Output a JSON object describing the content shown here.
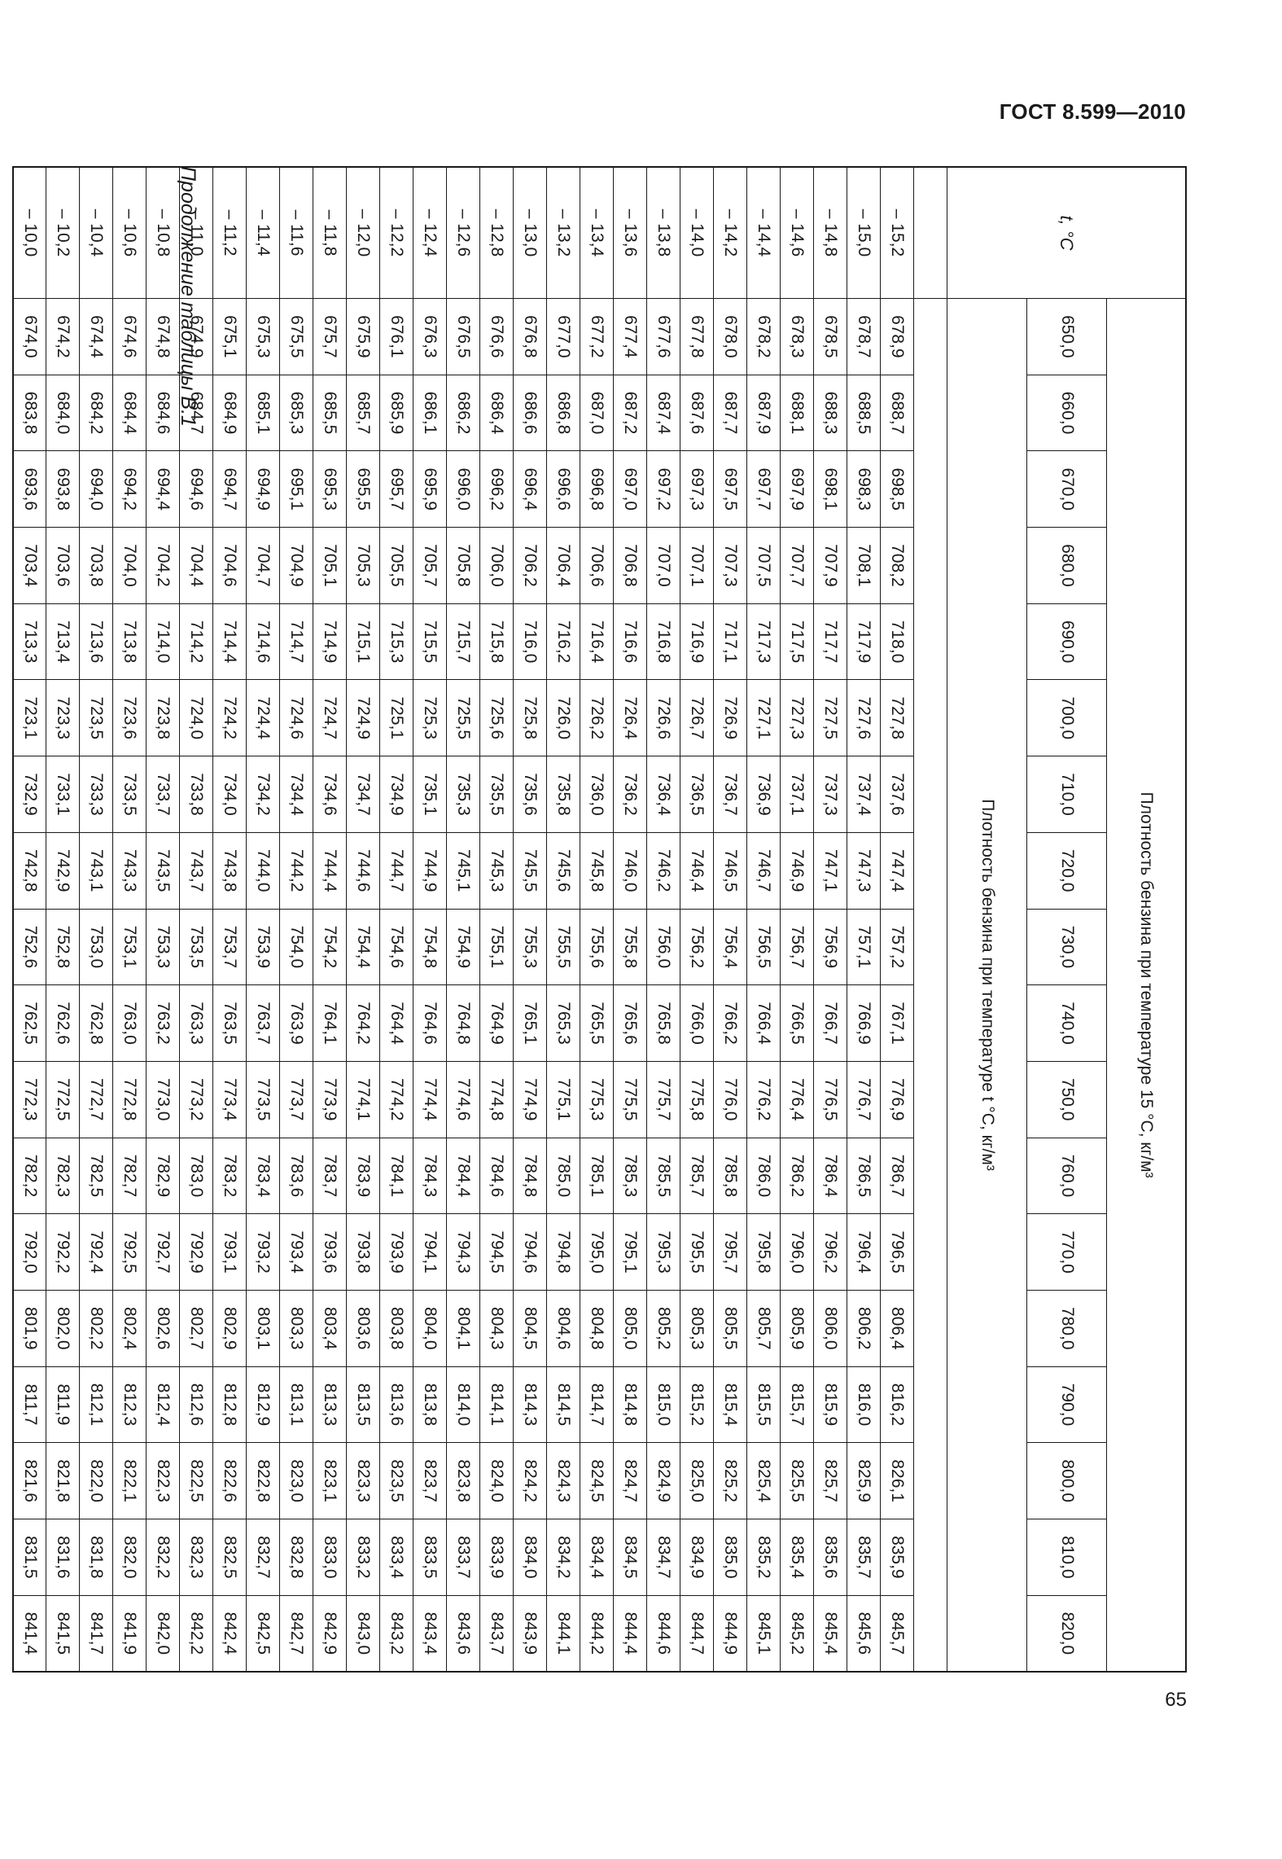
{
  "header": {
    "doc_code": "ГОСТ 8.599—2010"
  },
  "footer": {
    "page_number": "65"
  },
  "caption": "Продолжение таблицы В.1",
  "table": {
    "t_header": "t, °С",
    "density15_title": "Плотность бензина при температуре 15 °С, кг/м³",
    "density_t_title": "Плотность бензина при температуре t °С, кг/м³",
    "columns": [
      "650,0",
      "660,0",
      "670,0",
      "680,0",
      "690,0",
      "700,0",
      "710,0",
      "720,0",
      "730,0",
      "740,0",
      "750,0",
      "760,0",
      "770,0",
      "780,0",
      "790,0",
      "800,0",
      "810,0",
      "820,0"
    ],
    "rows": [
      {
        "t": "– 15,2",
        "v": [
          "678,9",
          "688,7",
          "698,5",
          "708,2",
          "718,0",
          "727,8",
          "737,6",
          "747,4",
          "757,2",
          "767,1",
          "776,9",
          "786,7",
          "796,5",
          "806,4",
          "816,2",
          "826,1",
          "835,9",
          "845,7"
        ]
      },
      {
        "t": "– 15,0",
        "v": [
          "678,7",
          "688,5",
          "698,3",
          "708,1",
          "717,9",
          "727,6",
          "737,4",
          "747,3",
          "757,1",
          "766,9",
          "776,7",
          "786,5",
          "796,4",
          "806,2",
          "816,0",
          "825,9",
          "835,7",
          "845,6"
        ]
      },
      {
        "t": "– 14,8",
        "v": [
          "678,5",
          "688,3",
          "698,1",
          "707,9",
          "717,7",
          "727,5",
          "737,3",
          "747,1",
          "756,9",
          "766,7",
          "776,5",
          "786,4",
          "796,2",
          "806,0",
          "815,9",
          "825,7",
          "835,6",
          "845,4"
        ]
      },
      {
        "t": "– 14,6",
        "v": [
          "678,3",
          "688,1",
          "697,9",
          "707,7",
          "717,5",
          "727,3",
          "737,1",
          "746,9",
          "756,7",
          "766,5",
          "776,4",
          "786,2",
          "796,0",
          "805,9",
          "815,7",
          "825,5",
          "835,4",
          "845,2"
        ]
      },
      {
        "t": "– 14,4",
        "v": [
          "678,2",
          "687,9",
          "697,7",
          "707,5",
          "717,3",
          "727,1",
          "736,9",
          "746,7",
          "756,5",
          "766,4",
          "776,2",
          "786,0",
          "795,8",
          "805,7",
          "815,5",
          "825,4",
          "835,2",
          "845,1"
        ]
      },
      {
        "t": "– 14,2",
        "v": [
          "678,0",
          "687,7",
          "697,5",
          "707,3",
          "717,1",
          "726,9",
          "736,7",
          "746,5",
          "756,4",
          "766,2",
          "776,0",
          "785,8",
          "795,7",
          "805,5",
          "815,4",
          "825,2",
          "835,0",
          "844,9"
        ]
      },
      {
        "t": "– 14,0",
        "v": [
          "677,8",
          "687,6",
          "697,3",
          "707,1",
          "716,9",
          "726,7",
          "736,5",
          "746,4",
          "756,2",
          "766,0",
          "775,8",
          "785,7",
          "795,5",
          "805,3",
          "815,2",
          "825,0",
          "834,9",
          "844,7"
        ]
      },
      {
        "t": "– 13,8",
        "v": [
          "677,6",
          "687,4",
          "697,2",
          "707,0",
          "716,8",
          "726,6",
          "736,4",
          "746,2",
          "756,0",
          "765,8",
          "775,7",
          "785,5",
          "795,3",
          "805,2",
          "815,0",
          "824,9",
          "834,7",
          "844,6"
        ]
      },
      {
        "t": "– 13,6",
        "v": [
          "677,4",
          "687,2",
          "697,0",
          "706,8",
          "716,6",
          "726,4",
          "736,2",
          "746,0",
          "755,8",
          "765,6",
          "775,5",
          "785,3",
          "795,1",
          "805,0",
          "814,8",
          "824,7",
          "834,5",
          "844,4"
        ]
      },
      {
        "t": "– 13,4",
        "v": [
          "677,2",
          "687,0",
          "696,8",
          "706,6",
          "716,4",
          "726,2",
          "736,0",
          "745,8",
          "755,6",
          "765,5",
          "775,3",
          "785,1",
          "795,0",
          "804,8",
          "814,7",
          "824,5",
          "834,4",
          "844,2"
        ]
      },
      {
        "t": "– 13,2",
        "v": [
          "677,0",
          "686,8",
          "696,6",
          "706,4",
          "716,2",
          "726,0",
          "735,8",
          "745,6",
          "755,5",
          "765,3",
          "775,1",
          "785,0",
          "794,8",
          "804,6",
          "814,5",
          "824,3",
          "834,2",
          "844,1"
        ]
      },
      {
        "t": "– 13,0",
        "v": [
          "676,8",
          "686,6",
          "696,4",
          "706,2",
          "716,0",
          "725,8",
          "735,6",
          "745,5",
          "755,3",
          "765,1",
          "774,9",
          "784,8",
          "794,6",
          "804,5",
          "814,3",
          "824,2",
          "834,0",
          "843,9"
        ]
      },
      {
        "t": "– 12,8",
        "v": [
          "676,6",
          "686,4",
          "696,2",
          "706,0",
          "715,8",
          "725,6",
          "735,5",
          "745,3",
          "755,1",
          "764,9",
          "774,8",
          "784,6",
          "794,5",
          "804,3",
          "814,1",
          "824,0",
          "833,9",
          "843,7"
        ]
      },
      {
        "t": "– 12,6",
        "v": [
          "676,5",
          "686,2",
          "696,0",
          "705,8",
          "715,7",
          "725,5",
          "735,3",
          "745,1",
          "754,9",
          "764,8",
          "774,6",
          "784,4",
          "794,3",
          "804,1",
          "814,0",
          "823,8",
          "833,7",
          "843,6"
        ]
      },
      {
        "t": "– 12,4",
        "v": [
          "676,3",
          "686,1",
          "695,9",
          "705,7",
          "715,5",
          "725,3",
          "735,1",
          "744,9",
          "754,8",
          "764,6",
          "774,4",
          "784,3",
          "794,1",
          "804,0",
          "813,8",
          "823,7",
          "833,5",
          "843,4"
        ]
      },
      {
        "t": "– 12,2",
        "v": [
          "676,1",
          "685,9",
          "695,7",
          "705,5",
          "715,3",
          "725,1",
          "734,9",
          "744,7",
          "754,6",
          "764,4",
          "774,2",
          "784,1",
          "793,9",
          "803,8",
          "813,6",
          "823,5",
          "833,4",
          "843,2"
        ]
      },
      {
        "t": "– 12,0",
        "v": [
          "675,9",
          "685,7",
          "695,5",
          "705,3",
          "715,1",
          "724,9",
          "734,7",
          "744,6",
          "754,4",
          "764,2",
          "774,1",
          "783,9",
          "793,8",
          "803,6",
          "813,5",
          "823,3",
          "833,2",
          "843,0"
        ]
      },
      {
        "t": "– 11,8",
        "v": [
          "675,7",
          "685,5",
          "695,3",
          "705,1",
          "714,9",
          "724,7",
          "734,6",
          "744,4",
          "754,2",
          "764,1",
          "773,9",
          "783,7",
          "793,6",
          "803,4",
          "813,3",
          "823,1",
          "833,0",
          "842,9"
        ]
      },
      {
        "t": "– 11,6",
        "v": [
          "675,5",
          "685,3",
          "695,1",
          "704,9",
          "714,7",
          "724,6",
          "734,4",
          "744,2",
          "754,0",
          "763,9",
          "773,7",
          "783,6",
          "793,4",
          "803,3",
          "813,1",
          "823,0",
          "832,8",
          "842,7"
        ]
      },
      {
        "t": "– 11,4",
        "v": [
          "675,3",
          "685,1",
          "694,9",
          "704,7",
          "714,6",
          "724,4",
          "734,2",
          "744,0",
          "753,9",
          "763,7",
          "773,5",
          "783,4",
          "793,2",
          "803,1",
          "812,9",
          "822,8",
          "832,7",
          "842,5"
        ]
      },
      {
        "t": "– 11,2",
        "v": [
          "675,1",
          "684,9",
          "694,7",
          "704,6",
          "714,4",
          "724,2",
          "734,0",
          "743,8",
          "753,7",
          "763,5",
          "773,4",
          "783,2",
          "793,1",
          "802,9",
          "812,8",
          "822,6",
          "832,5",
          "842,4"
        ]
      },
      {
        "t": "– 11,0",
        "v": [
          "674,9",
          "684,7",
          "694,6",
          "704,4",
          "714,2",
          "724,0",
          "733,8",
          "743,7",
          "753,5",
          "763,3",
          "773,2",
          "783,0",
          "792,9",
          "802,7",
          "812,6",
          "822,5",
          "832,3",
          "842,2"
        ]
      },
      {
        "t": "– 10,8",
        "v": [
          "674,8",
          "684,6",
          "694,4",
          "704,2",
          "714,0",
          "723,8",
          "733,7",
          "743,5",
          "753,3",
          "763,2",
          "773,0",
          "782,9",
          "792,7",
          "802,6",
          "812,4",
          "822,3",
          "832,2",
          "842,0"
        ]
      },
      {
        "t": "– 10,6",
        "v": [
          "674,6",
          "684,4",
          "694,2",
          "704,0",
          "713,8",
          "723,6",
          "733,5",
          "743,3",
          "753,1",
          "763,0",
          "772,8",
          "782,7",
          "792,5",
          "802,4",
          "812,3",
          "822,1",
          "832,0",
          "841,9"
        ]
      },
      {
        "t": "– 10,4",
        "v": [
          "674,4",
          "684,2",
          "694,0",
          "703,8",
          "713,6",
          "723,5",
          "733,3",
          "743,1",
          "753,0",
          "762,8",
          "772,7",
          "782,5",
          "792,4",
          "802,2",
          "812,1",
          "822,0",
          "831,8",
          "841,7"
        ]
      },
      {
        "t": "– 10,2",
        "v": [
          "674,2",
          "684,0",
          "693,8",
          "703,6",
          "713,4",
          "723,3",
          "733,1",
          "742,9",
          "752,8",
          "762,6",
          "772,5",
          "782,3",
          "792,2",
          "802,0",
          "811,9",
          "821,8",
          "831,6",
          "841,5"
        ]
      },
      {
        "t": "– 10,0",
        "v": [
          "674,0",
          "683,8",
          "693,6",
          "703,4",
          "713,3",
          "723,1",
          "732,9",
          "742,8",
          "752,6",
          "762,5",
          "772,3",
          "782,2",
          "792,0",
          "801,9",
          "811,7",
          "821,6",
          "831,5",
          "841,4"
        ]
      }
    ]
  }
}
